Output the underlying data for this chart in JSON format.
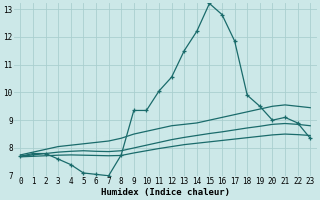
{
  "xlabel": "Humidex (Indice chaleur)",
  "xlim": [
    -0.5,
    23.5
  ],
  "ylim": [
    7,
    13.2
  ],
  "yticks": [
    7,
    8,
    9,
    10,
    11,
    12,
    13
  ],
  "xticks": [
    0,
    1,
    2,
    3,
    4,
    5,
    6,
    7,
    8,
    9,
    10,
    11,
    12,
    13,
    14,
    15,
    16,
    17,
    18,
    19,
    20,
    21,
    22,
    23
  ],
  "bg_color": "#cce8e8",
  "grid_color": "#aacfcf",
  "line_color": "#1a6b6b",
  "lines": [
    {
      "markers": true,
      "x": [
        0,
        1,
        2,
        3,
        4,
        5,
        6,
        7,
        8,
        9,
        10,
        11,
        12,
        13,
        14,
        15,
        16,
        17,
        18,
        19,
        20,
        21,
        22,
        23
      ],
      "y": [
        7.7,
        7.8,
        7.8,
        7.6,
        7.4,
        7.1,
        7.05,
        7.0,
        7.75,
        9.35,
        9.35,
        10.05,
        10.55,
        11.5,
        12.2,
        13.2,
        12.8,
        11.85,
        9.9,
        9.5,
        9.0,
        9.1,
        8.9,
        8.35
      ]
    },
    {
      "markers": false,
      "x": [
        0,
        1,
        2,
        3,
        4,
        5,
        6,
        7,
        8,
        9,
        10,
        11,
        12,
        13,
        14,
        15,
        16,
        17,
        18,
        19,
        20,
        21,
        22,
        23
      ],
      "y": [
        7.75,
        7.85,
        7.95,
        8.05,
        8.1,
        8.15,
        8.2,
        8.25,
        8.35,
        8.5,
        8.6,
        8.7,
        8.8,
        8.85,
        8.9,
        9.0,
        9.1,
        9.2,
        9.3,
        9.4,
        9.5,
        9.55,
        9.5,
        9.45
      ]
    },
    {
      "markers": false,
      "x": [
        0,
        1,
        2,
        3,
        4,
        5,
        6,
        7,
        8,
        9,
        10,
        11,
        12,
        13,
        14,
        15,
        16,
        17,
        18,
        19,
        20,
        21,
        22,
        23
      ],
      "y": [
        7.7,
        7.75,
        7.8,
        7.85,
        7.88,
        7.9,
        7.88,
        7.87,
        7.9,
        8.0,
        8.1,
        8.2,
        8.3,
        8.38,
        8.45,
        8.52,
        8.58,
        8.65,
        8.72,
        8.78,
        8.85,
        8.88,
        8.85,
        8.8
      ]
    },
    {
      "markers": false,
      "x": [
        0,
        1,
        2,
        3,
        4,
        5,
        6,
        7,
        8,
        9,
        10,
        11,
        12,
        13,
        14,
        15,
        16,
        17,
        18,
        19,
        20,
        21,
        22,
        23
      ],
      "y": [
        7.68,
        7.7,
        7.72,
        7.74,
        7.75,
        7.74,
        7.73,
        7.72,
        7.73,
        7.82,
        7.9,
        7.98,
        8.05,
        8.12,
        8.17,
        8.22,
        8.27,
        8.32,
        8.37,
        8.42,
        8.47,
        8.5,
        8.48,
        8.45
      ]
    }
  ]
}
